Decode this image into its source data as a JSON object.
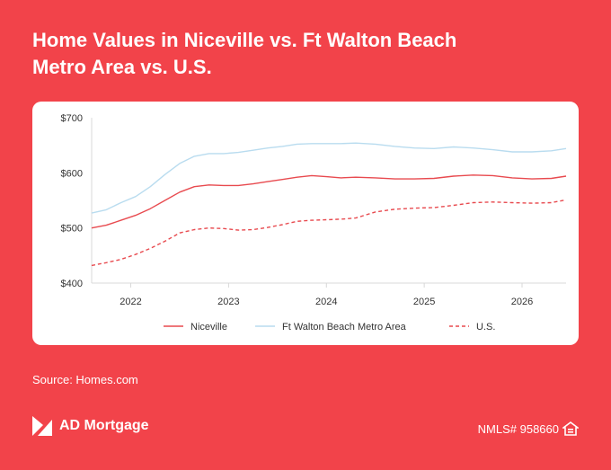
{
  "title_line1": "Home Values in Niceville vs. Ft Walton Beach",
  "title_line2": "Metro Area vs. U.S.",
  "source": "Source: Homes.com",
  "brand": {
    "name": "AD Mortgage",
    "nmls": "NMLS# 958660"
  },
  "colors": {
    "background": "#f2434a",
    "niceville": "#e84a4f",
    "ftwalton": "#b9dcef",
    "us": "#e84a4f"
  },
  "chart_data": {
    "type": "line",
    "y_tick_labels": [
      "$700",
      "$600",
      "$500",
      "$400"
    ],
    "y_ticks": [
      700,
      600,
      500,
      400
    ],
    "ylim": [
      400,
      700
    ],
    "x_tick_labels": [
      "2022",
      "2023",
      "2024",
      "2025",
      "2026"
    ],
    "x_ticks": [
      2022.0,
      2023.0,
      2024.0,
      2025.0,
      2026.0
    ],
    "xlim": [
      2021.6,
      2026.45
    ],
    "grid": false,
    "legend_position": "bottom",
    "series": [
      {
        "name": "Niceville",
        "style": "solid",
        "x": [
          2021.6,
          2021.75,
          2021.9,
          2022.05,
          2022.2,
          2022.35,
          2022.5,
          2022.65,
          2022.8,
          2022.95,
          2023.1,
          2023.25,
          2023.4,
          2023.55,
          2023.7,
          2023.85,
          2024.0,
          2024.15,
          2024.3,
          2024.5,
          2024.7,
          2024.9,
          2025.1,
          2025.3,
          2025.5,
          2025.7,
          2025.9,
          2026.1,
          2026.3,
          2026.45
        ],
        "y": [
          500,
          505,
          514,
          523,
          535,
          550,
          565,
          575,
          578,
          577,
          577,
          580,
          584,
          588,
          592,
          595,
          593,
          591,
          592,
          591,
          589,
          589,
          590,
          594,
          596,
          595,
          591,
          589,
          590,
          594
        ]
      },
      {
        "name": "Ft Walton Beach Metro Area",
        "style": "solid",
        "x": [
          2021.6,
          2021.75,
          2021.9,
          2022.05,
          2022.2,
          2022.35,
          2022.5,
          2022.65,
          2022.8,
          2022.95,
          2023.1,
          2023.25,
          2023.4,
          2023.55,
          2023.7,
          2023.85,
          2024.0,
          2024.15,
          2024.3,
          2024.5,
          2024.7,
          2024.9,
          2025.1,
          2025.3,
          2025.5,
          2025.7,
          2025.9,
          2026.1,
          2026.3,
          2026.45
        ],
        "y": [
          527,
          533,
          546,
          557,
          575,
          597,
          617,
          630,
          635,
          635,
          637,
          641,
          645,
          648,
          652,
          653,
          653,
          653,
          654,
          652,
          648,
          645,
          644,
          647,
          645,
          642,
          638,
          638,
          640,
          644
        ]
      },
      {
        "name": "U.S.",
        "style": "dashed",
        "x": [
          2021.6,
          2021.75,
          2021.9,
          2022.05,
          2022.2,
          2022.35,
          2022.5,
          2022.65,
          2022.8,
          2022.95,
          2023.1,
          2023.25,
          2023.4,
          2023.55,
          2023.7,
          2023.85,
          2024.0,
          2024.15,
          2024.3,
          2024.5,
          2024.7,
          2024.9,
          2025.1,
          2025.3,
          2025.5,
          2025.7,
          2025.9,
          2026.1,
          2026.3,
          2026.45
        ],
        "y": [
          432,
          437,
          443,
          452,
          463,
          476,
          491,
          497,
          500,
          499,
          496,
          497,
          501,
          506,
          512,
          514,
          515,
          516,
          518,
          529,
          534,
          536,
          537,
          541,
          546,
          547,
          546,
          545,
          546,
          551
        ]
      }
    ]
  }
}
